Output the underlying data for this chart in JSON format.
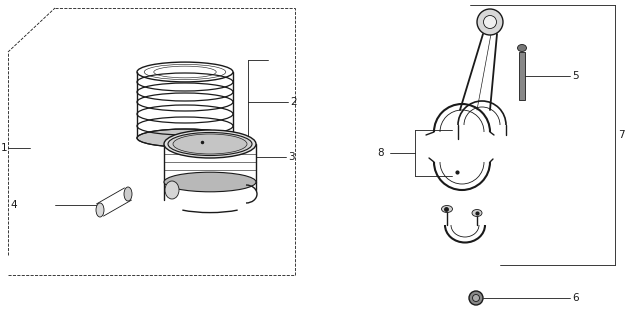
{
  "bg_color": "#ffffff",
  "line_color": "#1a1a1a",
  "line_width": 1.0,
  "thin_line": 0.6,
  "fig_width": 6.3,
  "fig_height": 3.2,
  "dpi": 100,
  "font_size": 7.5
}
